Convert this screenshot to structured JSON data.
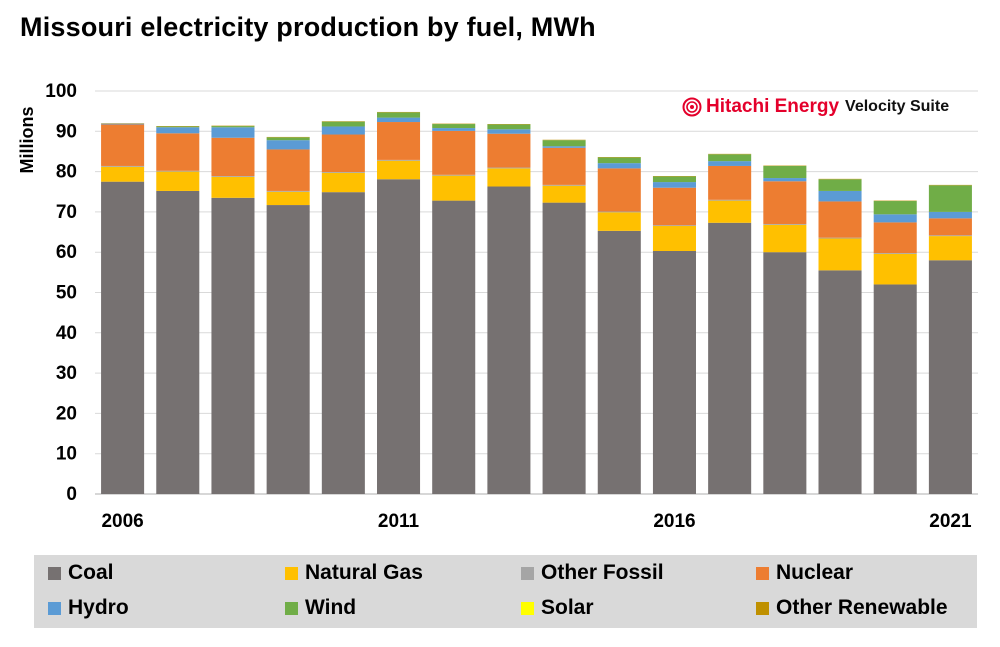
{
  "chart_data": {
    "type": "bar",
    "stacked": true,
    "title": "Missouri electricity production by fuel, MWh",
    "ylabel": "Millions",
    "xlabel": "",
    "ylim": [
      0,
      100
    ],
    "yticks": [
      0,
      10,
      20,
      30,
      40,
      50,
      60,
      70,
      80,
      90,
      100
    ],
    "categories": [
      "2006",
      "2007",
      "2008",
      "2009",
      "2010",
      "2011",
      "2012",
      "2013",
      "2014",
      "2015",
      "2016",
      "2017",
      "2018",
      "2019",
      "2020",
      "2021"
    ],
    "xtick_labels": [
      "2006",
      "",
      "",
      "",
      "",
      "2011",
      "",
      "",
      "",
      "",
      "2016",
      "",
      "",
      "",
      "",
      "2021"
    ],
    "grid": "horizontal",
    "legend_position": "bottom",
    "series": [
      {
        "name": "Coal",
        "color": "#767171",
        "values": [
          77.5,
          75.2,
          73.5,
          71.7,
          74.9,
          78.1,
          72.8,
          76.3,
          72.3,
          65.3,
          60.3,
          67.3,
          60.0,
          55.5,
          52.0,
          58.0
        ]
      },
      {
        "name": "Natural Gas",
        "color": "#ffc000",
        "values": [
          3.7,
          4.8,
          5.2,
          3.3,
          4.8,
          4.6,
          6.2,
          4.5,
          4.2,
          4.6,
          6.2,
          5.5,
          6.8,
          7.9,
          7.6,
          6.0
        ]
      },
      {
        "name": "Other Fossil",
        "color": "#a5a5a5",
        "values": [
          0.2,
          0.2,
          0.2,
          0.2,
          0.2,
          0.2,
          0.2,
          0.2,
          0.2,
          0.2,
          0.2,
          0.2,
          0.2,
          0.2,
          0.2,
          0.2
        ]
      },
      {
        "name": "Nuclear",
        "color": "#ed7d31",
        "values": [
          10.3,
          9.3,
          9.5,
          10.3,
          9.3,
          9.4,
          10.9,
          8.4,
          9.2,
          10.7,
          9.3,
          8.4,
          10.6,
          9.0,
          7.6,
          4.2
        ]
      },
      {
        "name": "Hydro",
        "color": "#5b9bd5",
        "values": [
          0.2,
          1.5,
          2.6,
          2.3,
          2.0,
          1.1,
          0.7,
          1.1,
          0.4,
          1.3,
          1.4,
          1.2,
          0.8,
          2.6,
          2.0,
          1.6
        ]
      },
      {
        "name": "Wind",
        "color": "#70ad47",
        "values": [
          0.0,
          0.2,
          0.3,
          0.7,
          1.2,
          1.3,
          1.0,
          1.2,
          1.5,
          1.4,
          1.4,
          1.7,
          3.0,
          2.9,
          3.3,
          6.6
        ]
      },
      {
        "name": "Solar",
        "color": "#ffff00",
        "values": [
          0,
          0,
          0,
          0,
          0,
          0,
          0,
          0,
          0,
          0,
          0,
          0,
          0,
          0,
          0,
          0
        ]
      },
      {
        "name": "Other Renewable",
        "color": "#bf9000",
        "values": [
          0.1,
          0.1,
          0.1,
          0.1,
          0.1,
          0.1,
          0.1,
          0.1,
          0.1,
          0.1,
          0.1,
          0.1,
          0.1,
          0.1,
          0.1,
          0.1
        ]
      }
    ]
  },
  "watermark": {
    "brand": "Hitachi Energy",
    "suite": "Velocity Suite",
    "brand_color": "#e4002b",
    "icon": "hitachi-energy-logo-icon"
  },
  "legend": {
    "background": "#d9d9d9"
  }
}
